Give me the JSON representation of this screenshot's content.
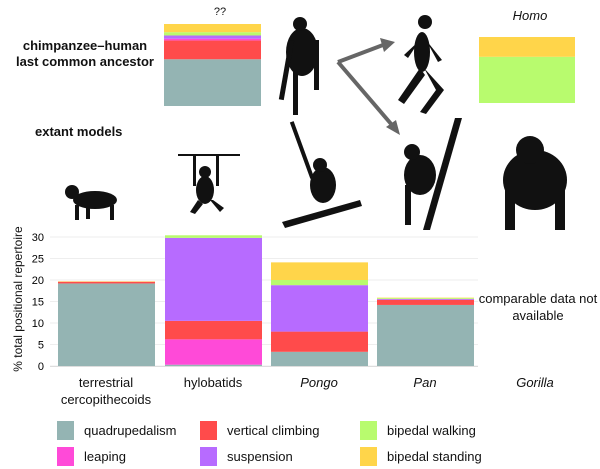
{
  "header": {
    "lca_label_line1": "chimpanzee–human",
    "lca_label_line2": "last common ancestor",
    "lca_question": "??",
    "homo_label": "Homo",
    "extant_label": "extant models"
  },
  "colors": {
    "quadrupedalism": "#94b4b3",
    "vertical climbing": "#ff4b4b",
    "bipedal walking": "#b8fb6e",
    "leaping": "#ff4ad8",
    "suspension": "#b76bff",
    "bipedal standing": "#ffd54a"
  },
  "chart_data": {
    "type": "bar",
    "stacked": true,
    "ylabel": "% total positional repertoire",
    "ylim": [
      0,
      31
    ],
    "yticks": [
      "0",
      "5",
      "10",
      "15",
      "20",
      "25",
      "30"
    ],
    "grid": true,
    "categories": [
      "terrestrial cercopithecoids",
      "hylobatids",
      "Pongo",
      "Pan",
      "Gorilla"
    ],
    "category_lines": [
      [
        "terrestrial",
        "cercopithecoids"
      ],
      [
        "hylobatids"
      ],
      [
        "Pongo"
      ],
      [
        "Pan"
      ],
      [
        "Gorilla"
      ]
    ],
    "italic": [
      false,
      false,
      true,
      true,
      true
    ],
    "series": [
      {
        "name": "quadrupedalism",
        "values": [
          19.2,
          0.3,
          3.3,
          14.2,
          null
        ]
      },
      {
        "name": "leaping",
        "values": [
          0,
          5.9,
          0,
          0,
          null
        ]
      },
      {
        "name": "vertical climbing",
        "values": [
          0.4,
          4.3,
          4.7,
          1.2,
          null
        ]
      },
      {
        "name": "suspension",
        "values": [
          0,
          19.3,
          10.8,
          0.2,
          null
        ]
      },
      {
        "name": "bipedal walking",
        "values": [
          0,
          0.6,
          1.2,
          0.2,
          null
        ]
      },
      {
        "name": "bipedal standing",
        "values": [
          0.1,
          0,
          4.1,
          0.1,
          null
        ]
      }
    ],
    "gorilla_note": "comparable data not available",
    "lca_proportions": [
      {
        "name": "quadrupedalism",
        "value": 57
      },
      {
        "name": "vertical climbing",
        "value": 23
      },
      {
        "name": "leaping",
        "value": 2
      },
      {
        "name": "suspension",
        "value": 4
      },
      {
        "name": "bipedal walking",
        "value": 4
      },
      {
        "name": "bipedal standing",
        "value": 10
      }
    ],
    "homo_proportions": [
      {
        "name": "bipedal walking",
        "value": 70
      },
      {
        "name": "bipedal standing",
        "value": 30
      }
    ],
    "legend": {
      "placement": "bottom",
      "items": [
        "quadrupedalism",
        "vertical climbing",
        "bipedal walking",
        "leaping",
        "suspension",
        "bipedal standing"
      ]
    }
  }
}
